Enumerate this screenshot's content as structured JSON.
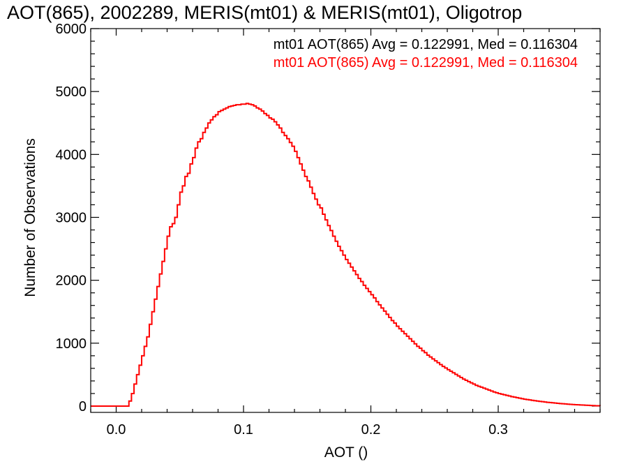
{
  "chart_data": {
    "type": "line",
    "title": "AOT(865), 2002289, MERIS(mt01) & MERIS(mt01), Oligotrop",
    "xlabel": "AOT ()",
    "ylabel": "Number of Observations",
    "xlim": [
      -0.02,
      0.38
    ],
    "ylim": [
      -100,
      6000
    ],
    "xticks": [
      0.0,
      0.1,
      0.2,
      0.3
    ],
    "xtick_labels": [
      "0.0",
      "0.1",
      "0.2",
      "0.3"
    ],
    "yticks": [
      0,
      1000,
      2000,
      3000,
      4000,
      5000,
      6000
    ],
    "ytick_labels": [
      "0",
      "1000",
      "2000",
      "3000",
      "4000",
      "5000",
      "6000"
    ],
    "legend": [
      {
        "text": "mt01 AOT(865) Avg = 0.122991, Med = 0.116304",
        "color": "#000000"
      },
      {
        "text": "mt01 AOT(865) Avg = 0.122991, Med = 0.116304",
        "color": "#ff0000"
      }
    ],
    "legend_position": "top-right",
    "style": "step",
    "series": [
      {
        "color": "#ff0000",
        "points": [
          [
            -0.02,
            0
          ],
          [
            0.0,
            0
          ],
          [
            0.008,
            0
          ],
          [
            0.01,
            80
          ],
          [
            0.012,
            200
          ],
          [
            0.014,
            350
          ],
          [
            0.016,
            500
          ],
          [
            0.018,
            650
          ],
          [
            0.02,
            800
          ],
          [
            0.022,
            950
          ],
          [
            0.024,
            1100
          ],
          [
            0.026,
            1300
          ],
          [
            0.028,
            1500
          ],
          [
            0.03,
            1700
          ],
          [
            0.032,
            1900
          ],
          [
            0.034,
            2100
          ],
          [
            0.036,
            2300
          ],
          [
            0.038,
            2500
          ],
          [
            0.04,
            2700
          ],
          [
            0.042,
            2850
          ],
          [
            0.044,
            2900
          ],
          [
            0.046,
            3000
          ],
          [
            0.048,
            3200
          ],
          [
            0.05,
            3400
          ],
          [
            0.052,
            3500
          ],
          [
            0.054,
            3650
          ],
          [
            0.056,
            3700
          ],
          [
            0.058,
            3850
          ],
          [
            0.06,
            3950
          ],
          [
            0.062,
            4100
          ],
          [
            0.064,
            4200
          ],
          [
            0.066,
            4250
          ],
          [
            0.068,
            4350
          ],
          [
            0.07,
            4420
          ],
          [
            0.072,
            4500
          ],
          [
            0.074,
            4550
          ],
          [
            0.076,
            4600
          ],
          [
            0.078,
            4630
          ],
          [
            0.08,
            4680
          ],
          [
            0.082,
            4700
          ],
          [
            0.084,
            4720
          ],
          [
            0.086,
            4740
          ],
          [
            0.088,
            4760
          ],
          [
            0.09,
            4770
          ],
          [
            0.092,
            4780
          ],
          [
            0.094,
            4790
          ],
          [
            0.096,
            4790
          ],
          [
            0.098,
            4800
          ],
          [
            0.1,
            4800
          ],
          [
            0.102,
            4810
          ],
          [
            0.104,
            4800
          ],
          [
            0.106,
            4790
          ],
          [
            0.108,
            4770
          ],
          [
            0.11,
            4740
          ],
          [
            0.112,
            4720
          ],
          [
            0.114,
            4690
          ],
          [
            0.116,
            4650
          ],
          [
            0.118,
            4620
          ],
          [
            0.12,
            4580
          ],
          [
            0.122,
            4560
          ],
          [
            0.124,
            4520
          ],
          [
            0.126,
            4470
          ],
          [
            0.128,
            4420
          ],
          [
            0.13,
            4350
          ],
          [
            0.132,
            4300
          ],
          [
            0.134,
            4250
          ],
          [
            0.136,
            4190
          ],
          [
            0.138,
            4130
          ],
          [
            0.14,
            4050
          ],
          [
            0.142,
            3950
          ],
          [
            0.144,
            3850
          ],
          [
            0.146,
            3750
          ],
          [
            0.148,
            3650
          ],
          [
            0.15,
            3580
          ],
          [
            0.152,
            3480
          ],
          [
            0.154,
            3380
          ],
          [
            0.156,
            3290
          ],
          [
            0.158,
            3200
          ],
          [
            0.16,
            3150
          ],
          [
            0.162,
            3050
          ],
          [
            0.164,
            2960
          ],
          [
            0.166,
            2870
          ],
          [
            0.168,
            2790
          ],
          [
            0.17,
            2700
          ],
          [
            0.172,
            2620
          ],
          [
            0.174,
            2540
          ],
          [
            0.176,
            2470
          ],
          [
            0.178,
            2400
          ],
          [
            0.18,
            2330
          ],
          [
            0.182,
            2270
          ],
          [
            0.184,
            2210
          ],
          [
            0.186,
            2150
          ],
          [
            0.188,
            2090
          ],
          [
            0.19,
            2030
          ],
          [
            0.192,
            1980
          ],
          [
            0.194,
            1920
          ],
          [
            0.196,
            1870
          ],
          [
            0.198,
            1820
          ],
          [
            0.2,
            1770
          ],
          [
            0.202,
            1720
          ],
          [
            0.204,
            1660
          ],
          [
            0.206,
            1610
          ],
          [
            0.208,
            1560
          ],
          [
            0.21,
            1510
          ],
          [
            0.212,
            1460
          ],
          [
            0.214,
            1410
          ],
          [
            0.216,
            1360
          ],
          [
            0.218,
            1320
          ],
          [
            0.22,
            1270
          ],
          [
            0.222,
            1230
          ],
          [
            0.224,
            1190
          ],
          [
            0.226,
            1150
          ],
          [
            0.228,
            1110
          ],
          [
            0.23,
            1070
          ],
          [
            0.232,
            1030
          ],
          [
            0.234,
            990
          ],
          [
            0.236,
            950
          ],
          [
            0.238,
            920
          ],
          [
            0.24,
            880
          ],
          [
            0.242,
            850
          ],
          [
            0.244,
            810
          ],
          [
            0.246,
            780
          ],
          [
            0.248,
            750
          ],
          [
            0.25,
            720
          ],
          [
            0.252,
            690
          ],
          [
            0.254,
            660
          ],
          [
            0.256,
            630
          ],
          [
            0.258,
            605
          ],
          [
            0.26,
            580
          ],
          [
            0.262,
            555
          ],
          [
            0.264,
            530
          ],
          [
            0.266,
            505
          ],
          [
            0.268,
            480
          ],
          [
            0.27,
            455
          ],
          [
            0.272,
            430
          ],
          [
            0.274,
            410
          ],
          [
            0.276,
            390
          ],
          [
            0.278,
            370
          ],
          [
            0.28,
            350
          ],
          [
            0.282,
            330
          ],
          [
            0.284,
            315
          ],
          [
            0.286,
            300
          ],
          [
            0.288,
            285
          ],
          [
            0.29,
            270
          ],
          [
            0.292,
            255
          ],
          [
            0.294,
            240
          ],
          [
            0.296,
            225
          ],
          [
            0.298,
            212
          ],
          [
            0.3,
            200
          ],
          [
            0.302,
            190
          ],
          [
            0.304,
            180
          ],
          [
            0.306,
            170
          ],
          [
            0.308,
            160
          ],
          [
            0.31,
            150
          ],
          [
            0.312,
            142
          ],
          [
            0.314,
            134
          ],
          [
            0.316,
            126
          ],
          [
            0.318,
            118
          ],
          [
            0.32,
            110
          ],
          [
            0.322,
            104
          ],
          [
            0.324,
            98
          ],
          [
            0.326,
            92
          ],
          [
            0.328,
            86
          ],
          [
            0.33,
            80
          ],
          [
            0.332,
            75
          ],
          [
            0.334,
            70
          ],
          [
            0.336,
            65
          ],
          [
            0.338,
            60
          ],
          [
            0.34,
            56
          ],
          [
            0.342,
            52
          ],
          [
            0.344,
            48
          ],
          [
            0.346,
            44
          ],
          [
            0.348,
            40
          ],
          [
            0.35,
            37
          ],
          [
            0.352,
            34
          ],
          [
            0.354,
            31
          ],
          [
            0.356,
            28
          ],
          [
            0.358,
            25
          ],
          [
            0.36,
            22
          ],
          [
            0.362,
            20
          ],
          [
            0.364,
            18
          ],
          [
            0.366,
            16
          ],
          [
            0.368,
            14
          ],
          [
            0.37,
            12
          ],
          [
            0.372,
            10
          ],
          [
            0.374,
            8
          ],
          [
            0.376,
            6
          ],
          [
            0.378,
            5
          ],
          [
            0.38,
            4
          ]
        ]
      }
    ]
  }
}
